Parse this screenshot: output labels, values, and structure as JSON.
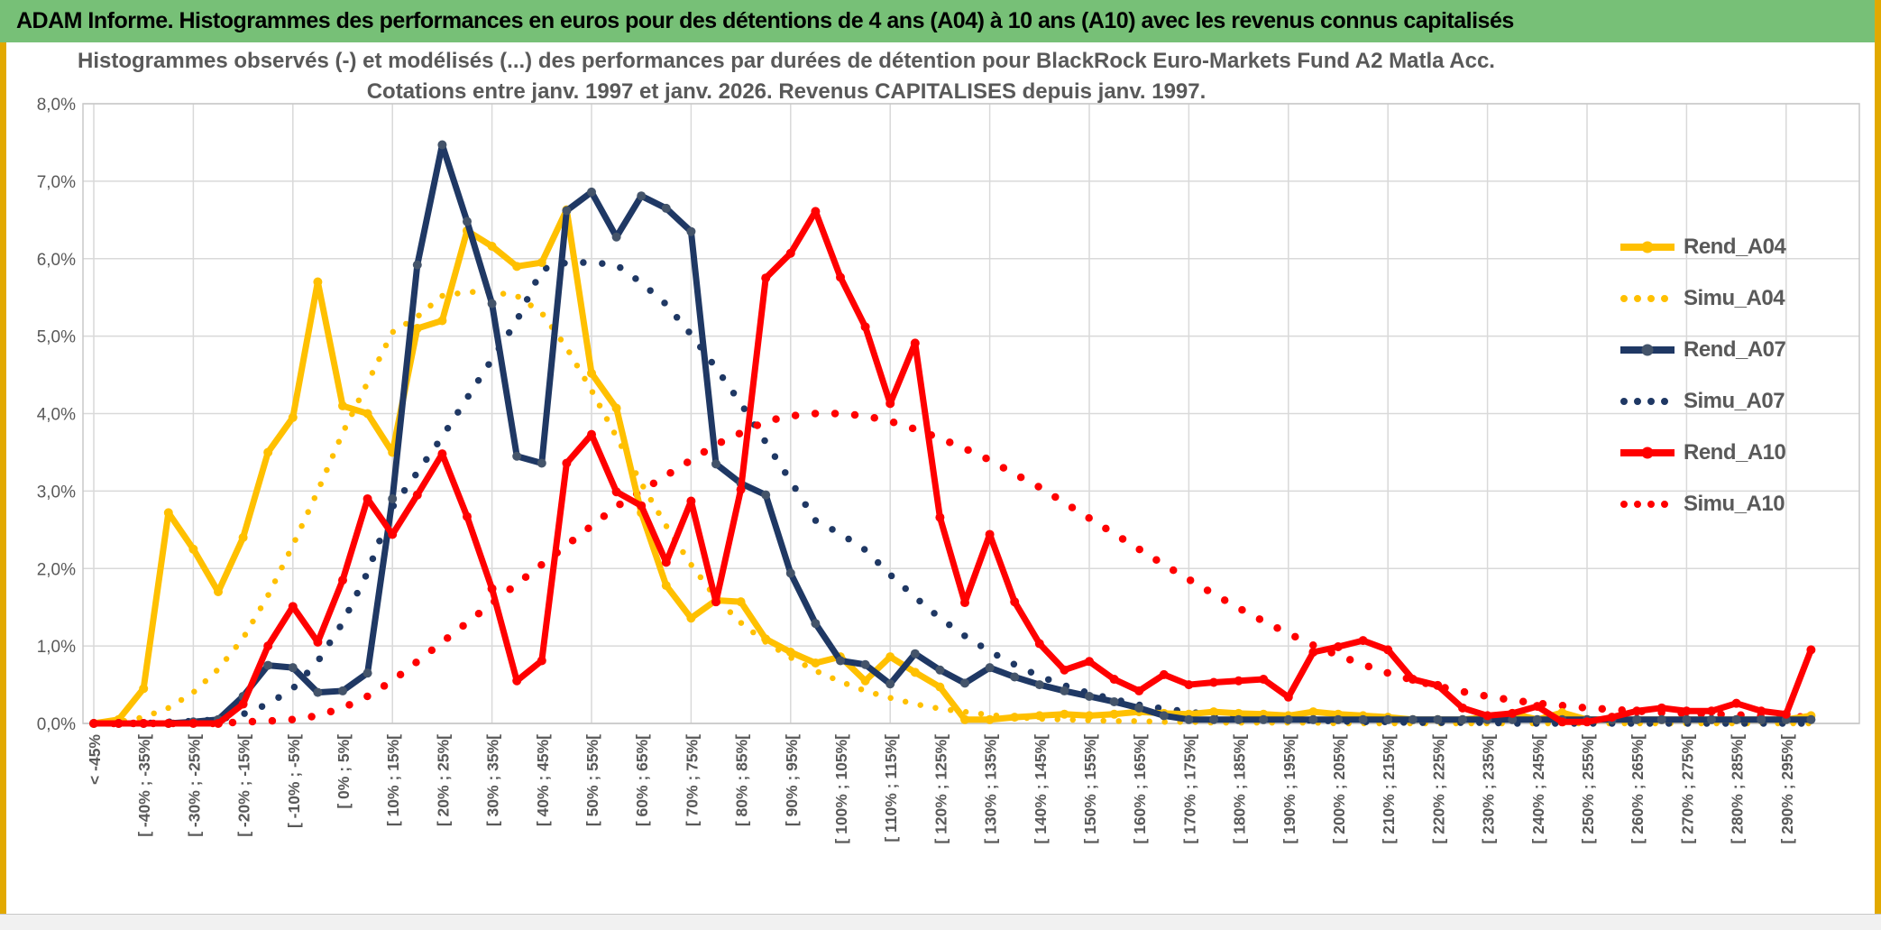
{
  "header": {
    "title": "ADAM Informe. Histogrammes des performances en euros pour des détentions de 4 ans (A04) à 10 ans (A10) avec les revenus connus capitalisés"
  },
  "chart": {
    "title_line1": "Histogrammes observés (-) et modélisés (...) des performances par durées de détention pour BlackRock Euro-Markets Fund A2 Matla Acc.",
    "title_line2": "Cotations entre janv. 1997 et janv. 2026. Revenus CAPITALISES depuis janv. 1997."
  },
  "chart_data": {
    "type": "line",
    "title": "Histogrammes observés (-) et modélisés (...) des performances par durées de détention pour BlackRock Euro-Markets Fund A2 Matla Acc. Cotations entre janv. 1997 et janv. 2026. Revenus CAPITALISES depuis janv. 1997.",
    "xlabel": "",
    "ylabel": "",
    "ylim": [
      0,
      8
    ],
    "grid": true,
    "legend_position": "right",
    "y_ticks": [
      "0,0%",
      "1,0%",
      "2,0%",
      "3,0%",
      "4,0%",
      "5,0%",
      "6,0%",
      "7,0%",
      "8,0%"
    ],
    "bins": 70,
    "x_labels": [
      "< -45%",
      "[ -40% ; -35%[",
      "[ -30% ; -25%[",
      "[ -20% ; -15%[",
      "[ -10% ; -5%[",
      "[ 0% ; 5%[",
      "[ 10% ; 15%[",
      "[ 20% ; 25%[",
      "[ 30% ; 35%[",
      "[ 40% ; 45%[",
      "[ 50% ; 55%[",
      "[ 60% ; 65%[",
      "[ 70% ; 75%[",
      "[ 80% ; 85%[",
      "[ 90% ; 95%[",
      "[ 100% ; 105%[",
      "[ 110% ; 115%[",
      "[ 120% ; 125%[",
      "[ 130% ; 135%[",
      "[ 140% ; 145%[",
      "[ 150% ; 155%[",
      "[ 160% ; 165%[",
      "[ 170% ; 175%[",
      "[ 180% ; 185%[",
      "[ 190% ; 195%[",
      "[ 200% ; 205%[",
      "[ 210% ; 215%[",
      "[ 220% ; 225%[",
      "[ 230% ; 235%[",
      "[ 240% ; 245%[",
      "[ 250% ; 255%[",
      "[ 260% ; 265%[",
      "[ 270% ; 275%[",
      "[ 280% ; 285%[",
      "[ 290% ; 295%["
    ],
    "series": [
      {
        "name": "Simu_A04",
        "color": "#FFC000",
        "style": "dotted",
        "dot_w": 6.5,
        "dot_gap": 17,
        "values": [
          0,
          0.02,
          0.08,
          0.2,
          0.4,
          0.7,
          1.1,
          1.65,
          2.3,
          3.0,
          3.75,
          4.4,
          5.05,
          5.25,
          5.52,
          5.57,
          5.57,
          5.52,
          5.3,
          4.85,
          4.3,
          3.7,
          3.1,
          2.55,
          2.05,
          1.62,
          1.3,
          1.05,
          0.85,
          0.68,
          0.54,
          0.42,
          0.33,
          0.25,
          0.19,
          0.15,
          0.11,
          0.08,
          0.06,
          0.05,
          0.04,
          0.03,
          0.03,
          0.02,
          0.02,
          0.01,
          0.01,
          0.01,
          0.01,
          0.01,
          0,
          0,
          0,
          0,
          0,
          0,
          0,
          0,
          0,
          0,
          0,
          0,
          0,
          0,
          0,
          0,
          0,
          0,
          0,
          0
        ]
      },
      {
        "name": "Simu_A07",
        "color": "#1F3864",
        "style": "dotted",
        "dot_w": 7.5,
        "dot_gap": 21,
        "values": [
          0,
          0,
          0,
          0.02,
          0.03,
          0.05,
          0.12,
          0.25,
          0.45,
          0.8,
          1.3,
          1.95,
          2.79,
          3.24,
          3.7,
          4.2,
          4.7,
          5.2,
          5.86,
          5.95,
          5.95,
          5.92,
          5.69,
          5.41,
          5.02,
          4.59,
          4.13,
          3.63,
          3.13,
          2.62,
          2.45,
          2.24,
          1.92,
          1.63,
          1.36,
          1.13,
          0.93,
          0.76,
          0.61,
          0.49,
          0.39,
          0.31,
          0.24,
          0.19,
          0.15,
          0.11,
          0.09,
          0.07,
          0.05,
          0.04,
          0.03,
          0.02,
          0.02,
          0.01,
          0.01,
          0.01,
          0.01,
          0,
          0,
          0,
          0,
          0,
          0,
          0,
          0,
          0,
          0,
          0,
          0,
          0
        ]
      },
      {
        "name": "Simu_A10",
        "color": "#FF0000",
        "style": "dotted",
        "dot_w": 8.5,
        "dot_gap": 22,
        "values": [
          0,
          0,
          0,
          0,
          0,
          0,
          0.02,
          0.03,
          0.05,
          0.1,
          0.2,
          0.35,
          0.55,
          0.8,
          1.05,
          1.3,
          1.55,
          1.8,
          2.05,
          2.3,
          2.55,
          2.8,
          3.0,
          3.2,
          3.4,
          3.6,
          3.75,
          3.9,
          3.97,
          4.0,
          4.0,
          3.97,
          3.9,
          3.8,
          3.68,
          3.55,
          3.4,
          3.22,
          3.05,
          2.85,
          2.65,
          2.45,
          2.25,
          2.05,
          1.86,
          1.67,
          1.49,
          1.32,
          1.16,
          1.01,
          0.88,
          0.76,
          0.65,
          0.56,
          0.48,
          0.41,
          0.35,
          0.3,
          0.26,
          0.23,
          0.2,
          0.18,
          0.16,
          0.14,
          0.13,
          0.12,
          0.11,
          0.1,
          0.09,
          0.08
        ]
      },
      {
        "name": "Rend_A04",
        "color": "#FFC000",
        "style": "solid",
        "marker": "#FFC000",
        "values": [
          0,
          0.05,
          0.45,
          2.72,
          2.25,
          1.7,
          2.4,
          3.5,
          3.95,
          5.7,
          4.1,
          4.0,
          3.5,
          5.1,
          5.2,
          6.36,
          6.16,
          5.9,
          5.95,
          6.63,
          4.52,
          4.07,
          2.72,
          1.78,
          1.36,
          1.59,
          1.57,
          1.09,
          0.92,
          0.78,
          0.86,
          0.55,
          0.86,
          0.66,
          0.47,
          0.05,
          0.05,
          0.08,
          0.1,
          0.12,
          0.1,
          0.12,
          0.15,
          0.13,
          0.12,
          0.15,
          0.13,
          0.12,
          0.1,
          0.15,
          0.12,
          0.1,
          0.08,
          0.05,
          0.05,
          0.05,
          0.08,
          0.13,
          0.05,
          0.14,
          0.05,
          0.05,
          0.05,
          0.05,
          0.05,
          0.05,
          0.05,
          0.05,
          0.05,
          0.1
        ]
      },
      {
        "name": "Rend_A07",
        "color": "#1F3864",
        "style": "solid",
        "marker": "#44546A",
        "values": [
          0,
          0,
          0,
          0,
          0.02,
          0.05,
          0.35,
          0.75,
          0.72,
          0.4,
          0.42,
          0.65,
          2.9,
          5.92,
          7.47,
          6.48,
          5.42,
          3.45,
          3.36,
          6.62,
          6.86,
          6.28,
          6.81,
          6.65,
          6.35,
          3.35,
          3.1,
          2.95,
          1.94,
          1.29,
          0.81,
          0.76,
          0.51,
          0.9,
          0.69,
          0.52,
          0.72,
          0.6,
          0.5,
          0.42,
          0.35,
          0.28,
          0.2,
          0.1,
          0.05,
          0.05,
          0.05,
          0.05,
          0.05,
          0.05,
          0.05,
          0.05,
          0.05,
          0.05,
          0.05,
          0.05,
          0.05,
          0.05,
          0.05,
          0.05,
          0.05,
          0.05,
          0.05,
          0.05,
          0.05,
          0.05,
          0.05,
          0.05,
          0.05,
          0.05
        ]
      },
      {
        "name": "Rend_A10",
        "color": "#FF0000",
        "style": "solid",
        "marker": "#FF0000",
        "values": [
          0,
          0,
          0,
          0,
          0,
          0,
          0.25,
          1.0,
          1.51,
          1.05,
          1.85,
          2.9,
          2.44,
          2.95,
          3.48,
          2.67,
          1.74,
          0.55,
          0.81,
          3.36,
          3.73,
          2.99,
          2.81,
          2.08,
          2.87,
          1.57,
          3.02,
          5.75,
          6.07,
          6.61,
          5.76,
          5.12,
          4.13,
          4.91,
          2.66,
          1.56,
          2.44,
          1.57,
          1.03,
          0.69,
          0.8,
          0.57,
          0.42,
          0.63,
          0.5,
          0.53,
          0.55,
          0.57,
          0.34,
          0.92,
          0.99,
          1.07,
          0.95,
          0.57,
          0.49,
          0.2,
          0.1,
          0.13,
          0.22,
          0.02,
          0.02,
          0.08,
          0.16,
          0.2,
          0.16,
          0.16,
          0.26,
          0.16,
          0.12,
          0.95
        ]
      }
    ],
    "legend": [
      {
        "label": "Rend_A04",
        "color": "#FFC000",
        "style": "solid"
      },
      {
        "label": "Simu_A04",
        "color": "#FFC000",
        "style": "dotted"
      },
      {
        "label": "Rend_A07",
        "color": "#1F3864",
        "style": "solid",
        "marker": "#44546A"
      },
      {
        "label": "Simu_A07",
        "color": "#1F3864",
        "style": "dotted"
      },
      {
        "label": "Rend_A10",
        "color": "#FF0000",
        "style": "solid"
      },
      {
        "label": "Simu_A10",
        "color": "#FF0000",
        "style": "dotted"
      }
    ],
    "colors": {
      "grid": "#D9D9D9",
      "plot_border": "#C8C8C8",
      "axis_text": "#595959",
      "title_text": "#595959",
      "header_green": "#77C077",
      "gold_edge": "#E2A900"
    }
  }
}
